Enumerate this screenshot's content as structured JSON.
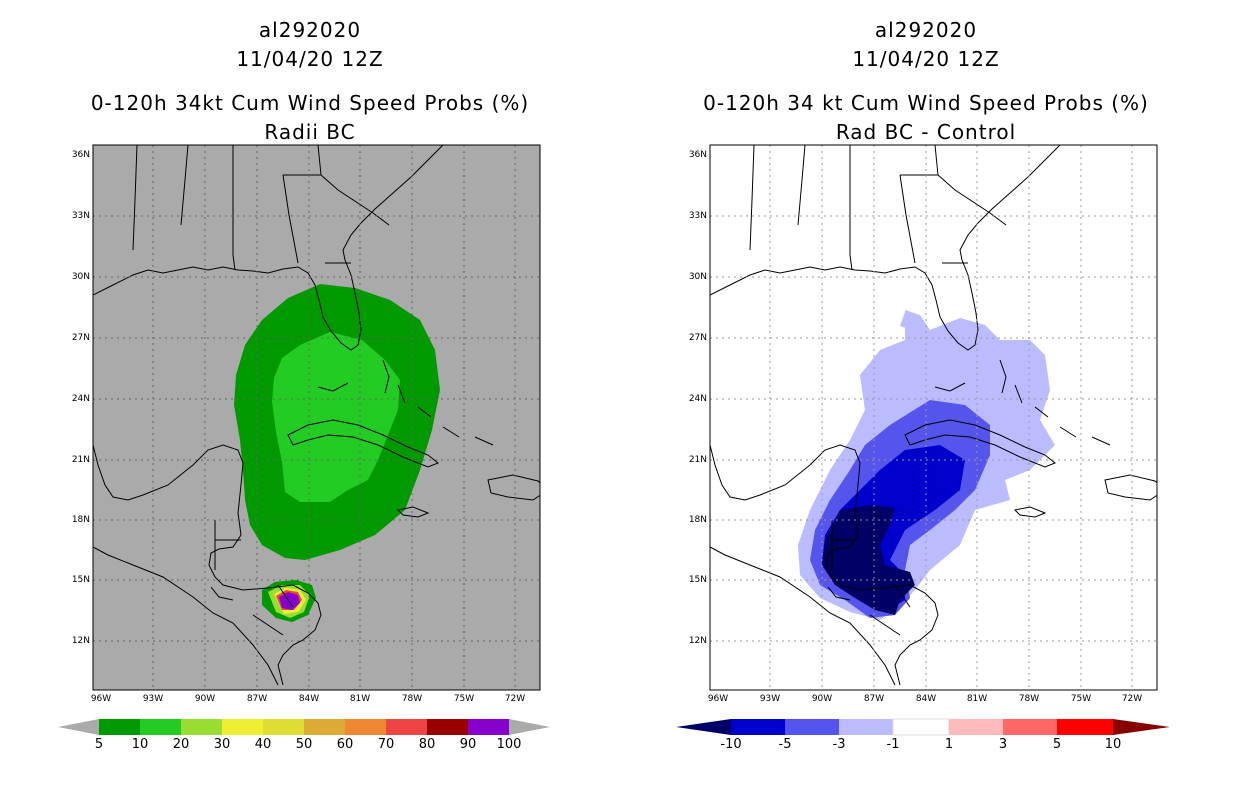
{
  "panels": [
    {
      "storm_id": "al292020",
      "date": "11/04/20 12Z",
      "title": "0-120h 34kt Cum Wind Speed Probs (%)",
      "subtitle": "Radii BC",
      "colorbar_labels": [
        "5",
        "10",
        "20",
        "30",
        "40",
        "50",
        "60",
        "70",
        "80",
        "90",
        "100"
      ],
      "colors": [
        "#009900",
        "#22cc22",
        "#99dd33",
        "#eeee33",
        "#dddd33",
        "#ddaa33",
        "#ee8833",
        "#ee4444",
        "#990000",
        "#8800cc"
      ]
    },
    {
      "storm_id": "al292020",
      "date": "11/04/20 12Z",
      "title": "0-120h 34 kt Cum Wind Speed Probs (%)",
      "subtitle": "Rad BC - Control",
      "colorbar_labels": [
        "-10",
        "-5",
        "-3",
        "-1",
        "1",
        "3",
        "5",
        "10"
      ],
      "colors": [
        "#0000cc",
        "#5555ee",
        "#bbbbff",
        "#ffffff",
        "#ffbbbb",
        "#ff6666",
        "#ff0000",
        "#880000"
      ]
    }
  ],
  "axes": {
    "lat_labels": [
      "36N",
      "33N",
      "30N",
      "27N",
      "24N",
      "21N",
      "18N",
      "15N",
      "12N"
    ],
    "lon_labels": [
      "96W",
      "93W",
      "90W",
      "87W",
      "84W",
      "81W",
      "78W",
      "75W",
      "72W"
    ]
  }
}
